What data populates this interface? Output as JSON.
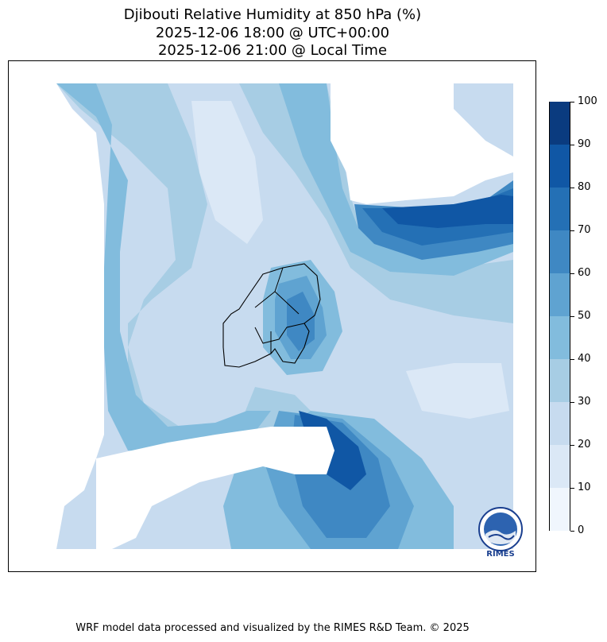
{
  "title": {
    "line1": "Djibouti Relative Humidity at 850 hPa (%)",
    "line2": "2025-12-06 18:00 @ UTC+00:00",
    "line3": "2025-12-06 21:00 @ Local Time"
  },
  "colorbar": {
    "min": 0,
    "max": 100,
    "levels": [
      0,
      10,
      20,
      30,
      40,
      50,
      60,
      70,
      80,
      90,
      100
    ],
    "labels": [
      "0",
      "10",
      "20",
      "30",
      "40",
      "50",
      "60",
      "70",
      "80",
      "90",
      "100"
    ],
    "colors": [
      "#f0f6fd",
      "#dbe8f6",
      "#c7dbef",
      "#a7cde4",
      "#82bcdd",
      "#5fa3d1",
      "#3f88c3",
      "#2470b5",
      "#1057a5",
      "#0a3b7f"
    ]
  },
  "logo": {
    "text": "RIMES"
  },
  "footer": "WRF model data processed and visualized by the RIMES R&D Team. © 2025"
}
